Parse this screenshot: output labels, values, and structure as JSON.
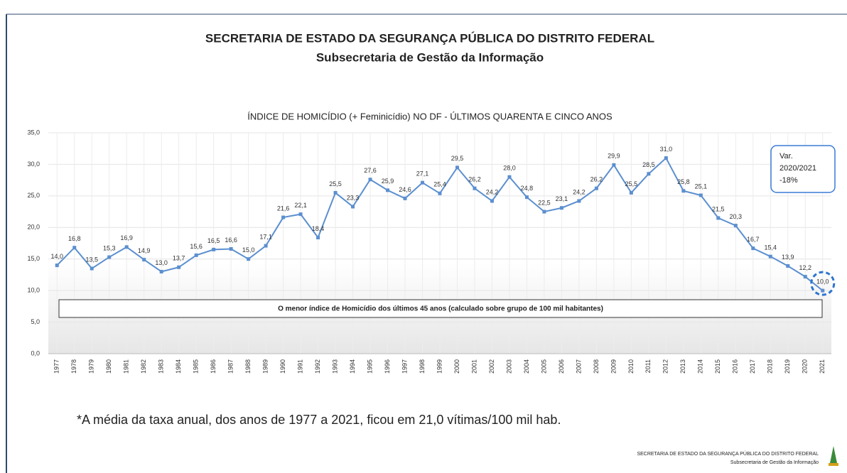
{
  "header": {
    "title": "SECRETARIA DE ESTADO DA SEGURANÇA PÚBLICA DO DISTRITO FEDERAL",
    "subtitle": "Subsecretaria de Gestão da Informação"
  },
  "chart_data": {
    "type": "line",
    "title": "ÍNDICE DE HOMICÍDIO (+ Feminicídio) NO DF - ÚLTIMOS QUARENTA E CINCO ANOS",
    "categories": [
      "1977",
      "1978",
      "1979",
      "1980",
      "1981",
      "1982",
      "1983",
      "1984",
      "1985",
      "1986",
      "1987",
      "1988",
      "1989",
      "1990",
      "1991",
      "1992",
      "1993",
      "1994",
      "1995",
      "1996",
      "1997",
      "1998",
      "1999",
      "2000",
      "2001",
      "2002",
      "2003",
      "2004",
      "2005",
      "2006",
      "2007",
      "2008",
      "2009",
      "2010",
      "2011",
      "2012",
      "2013",
      "2014",
      "2015",
      "2016",
      "2017",
      "2018",
      "2019",
      "2020",
      "2021"
    ],
    "series": [
      {
        "name": "Índice de homicídio",
        "color": "#5b8fd0",
        "values": [
          14.0,
          16.8,
          13.5,
          15.3,
          16.9,
          14.9,
          13.0,
          13.7,
          15.6,
          16.5,
          16.6,
          15.0,
          17.1,
          21.6,
          22.1,
          18.4,
          25.5,
          23.3,
          27.6,
          25.9,
          24.6,
          27.1,
          25.4,
          29.5,
          26.2,
          24.2,
          28.0,
          24.8,
          22.5,
          23.1,
          24.2,
          26.2,
          29.9,
          25.5,
          28.5,
          31.0,
          25.8,
          25.1,
          21.5,
          20.3,
          16.7,
          15.4,
          13.9,
          12.2,
          10.0
        ],
        "value_labels": [
          "14,0",
          "16,8",
          "13,5",
          "15,3",
          "16,9",
          "14,9",
          "13,0",
          "13,7",
          "15,6",
          "16,5",
          "16,6",
          "15,0",
          "17,1",
          "21,6",
          "22,1",
          "18,4",
          "25,5",
          "23,3",
          "27,6",
          "25,9",
          "24,6",
          "27,1",
          "25,4",
          "29,5",
          "26,2",
          "24,2",
          "28,0",
          "24,8",
          "22,5",
          "23,1",
          "24,2",
          "26,2",
          "29,9",
          "25,5",
          "28,5",
          "31,0",
          "25,8",
          "25,1",
          "21,5",
          "20,3",
          "16,7",
          "15,4",
          "13,9",
          "12,2",
          "10,0"
        ]
      }
    ],
    "ylim": [
      0,
      35
    ],
    "yticks": [
      {
        "value": 0,
        "label": "0,0"
      },
      {
        "value": 5,
        "label": "5,0"
      },
      {
        "value": 10,
        "label": "10,0"
      },
      {
        "value": 15,
        "label": "15,0"
      },
      {
        "value": 20,
        "label": "20,0"
      },
      {
        "value": 25,
        "label": "25,0"
      },
      {
        "value": 30,
        "label": "30,0"
      },
      {
        "value": 35,
        "label": "35,0"
      }
    ],
    "grid": true,
    "annotations": {
      "variation": [
        "Var.",
        "2020/2021",
        "-18%"
      ],
      "banner": "O menor índice de Homicídio dos últimos 45 anos (calculado sobre grupo de 100 mil habitantes)"
    }
  },
  "footnote": "*A média da taxa anual, dos anos de 1977 a 2021, ficou em 21,0 vítimas/100 mil hab.",
  "footer": {
    "line1": "SECRETARIA DE ESTADO DA SEGURANÇA PÚBLICA DO DISTRITO FEDERAL",
    "line2": "Subsecretaria de Gestão da Informação"
  }
}
